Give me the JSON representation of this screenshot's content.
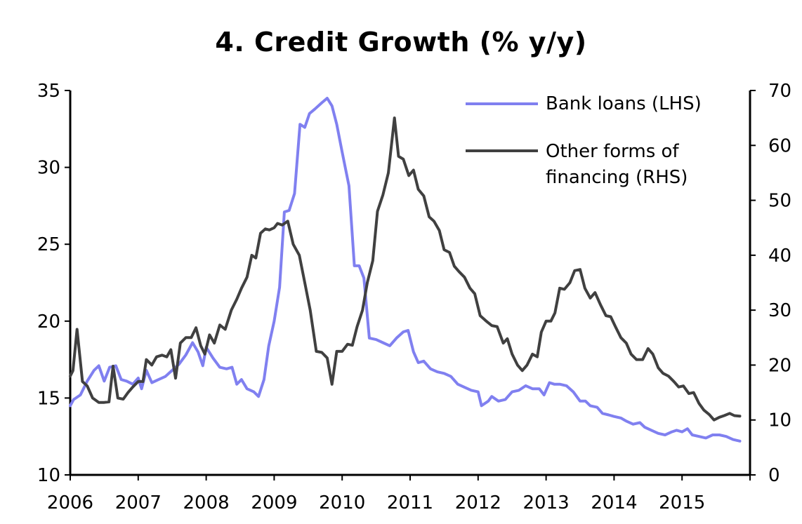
{
  "chart_data": {
    "type": "line",
    "title": "4. Credit Growth (% y/y)",
    "x_ticks": [
      "2006",
      "2007",
      "2008",
      "2009",
      "2010",
      "2011",
      "2012",
      "2013",
      "2014",
      "2015"
    ],
    "x_range": [
      2006.0,
      2016.0
    ],
    "y_left": {
      "ticks": [
        "10",
        "15",
        "20",
        "25",
        "30",
        "35"
      ],
      "range": [
        10,
        35
      ]
    },
    "y_right": {
      "ticks": [
        "0",
        "10",
        "20",
        "30",
        "40",
        "50",
        "60",
        "70"
      ],
      "range": [
        0,
        70
      ]
    },
    "grid": false,
    "legend_placement": "top-right",
    "series": [
      {
        "name": "Bank loans (LHS)",
        "axis": "left",
        "color": "#8080f0",
        "points": [
          [
            2006.0,
            14.5
          ],
          [
            2006.05,
            14.9
          ],
          [
            2006.15,
            15.2
          ],
          [
            2006.25,
            16.1
          ],
          [
            2006.35,
            16.8
          ],
          [
            2006.42,
            17.1
          ],
          [
            2006.5,
            16.1
          ],
          [
            2006.58,
            17.0
          ],
          [
            2006.67,
            17.1
          ],
          [
            2006.75,
            16.2
          ],
          [
            2006.83,
            16.1
          ],
          [
            2006.92,
            15.9
          ],
          [
            2007.0,
            16.3
          ],
          [
            2007.05,
            15.6
          ],
          [
            2007.12,
            16.8
          ],
          [
            2007.2,
            16.0
          ],
          [
            2007.3,
            16.2
          ],
          [
            2007.4,
            16.4
          ],
          [
            2007.5,
            16.8
          ],
          [
            2007.6,
            17.2
          ],
          [
            2007.7,
            17.8
          ],
          [
            2007.8,
            18.6
          ],
          [
            2007.88,
            18.0
          ],
          [
            2007.95,
            17.1
          ],
          [
            2008.0,
            18.3
          ],
          [
            2008.1,
            17.6
          ],
          [
            2008.2,
            17.0
          ],
          [
            2008.3,
            16.9
          ],
          [
            2008.38,
            17.0
          ],
          [
            2008.45,
            15.9
          ],
          [
            2008.52,
            16.2
          ],
          [
            2008.6,
            15.6
          ],
          [
            2008.7,
            15.4
          ],
          [
            2008.77,
            15.1
          ],
          [
            2008.85,
            16.2
          ],
          [
            2008.92,
            18.4
          ],
          [
            2009.0,
            20.0
          ],
          [
            2009.08,
            22.2
          ],
          [
            2009.15,
            27.1
          ],
          [
            2009.22,
            27.2
          ],
          [
            2009.3,
            28.3
          ],
          [
            2009.38,
            32.8
          ],
          [
            2009.45,
            32.6
          ],
          [
            2009.52,
            33.5
          ],
          [
            2009.6,
            33.8
          ],
          [
            2009.7,
            34.2
          ],
          [
            2009.78,
            34.5
          ],
          [
            2009.85,
            34.0
          ],
          [
            2009.92,
            32.8
          ],
          [
            2010.0,
            31.0
          ],
          [
            2010.1,
            28.8
          ],
          [
            2010.18,
            23.6
          ],
          [
            2010.25,
            23.6
          ],
          [
            2010.32,
            22.8
          ],
          [
            2010.4,
            18.9
          ],
          [
            2010.5,
            18.8
          ],
          [
            2010.6,
            18.6
          ],
          [
            2010.7,
            18.4
          ],
          [
            2010.8,
            18.9
          ],
          [
            2010.9,
            19.3
          ],
          [
            2010.97,
            19.4
          ],
          [
            2011.05,
            18.0
          ],
          [
            2011.12,
            17.3
          ],
          [
            2011.2,
            17.4
          ],
          [
            2011.3,
            16.9
          ],
          [
            2011.4,
            16.7
          ],
          [
            2011.5,
            16.6
          ],
          [
            2011.6,
            16.4
          ],
          [
            2011.7,
            15.9
          ],
          [
            2011.8,
            15.7
          ],
          [
            2011.9,
            15.5
          ],
          [
            2012.0,
            15.4
          ],
          [
            2012.05,
            14.5
          ],
          [
            2012.15,
            14.8
          ],
          [
            2012.2,
            15.1
          ],
          [
            2012.3,
            14.8
          ],
          [
            2012.4,
            14.9
          ],
          [
            2012.5,
            15.4
          ],
          [
            2012.6,
            15.5
          ],
          [
            2012.7,
            15.8
          ],
          [
            2012.8,
            15.6
          ],
          [
            2012.9,
            15.6
          ],
          [
            2012.97,
            15.2
          ],
          [
            2013.05,
            16.0
          ],
          [
            2013.12,
            15.9
          ],
          [
            2013.2,
            15.9
          ],
          [
            2013.3,
            15.8
          ],
          [
            2013.4,
            15.4
          ],
          [
            2013.5,
            14.8
          ],
          [
            2013.58,
            14.8
          ],
          [
            2013.65,
            14.5
          ],
          [
            2013.75,
            14.4
          ],
          [
            2013.83,
            14.0
          ],
          [
            2013.92,
            13.9
          ],
          [
            2014.0,
            13.8
          ],
          [
            2014.1,
            13.7
          ],
          [
            2014.18,
            13.5
          ],
          [
            2014.28,
            13.3
          ],
          [
            2014.38,
            13.4
          ],
          [
            2014.45,
            13.1
          ],
          [
            2014.55,
            12.9
          ],
          [
            2014.65,
            12.7
          ],
          [
            2014.75,
            12.6
          ],
          [
            2014.85,
            12.8
          ],
          [
            2014.92,
            12.9
          ],
          [
            2015.0,
            12.8
          ],
          [
            2015.08,
            13.0
          ],
          [
            2015.15,
            12.6
          ],
          [
            2015.25,
            12.5
          ],
          [
            2015.35,
            12.4
          ],
          [
            2015.45,
            12.6
          ],
          [
            2015.55,
            12.6
          ],
          [
            2015.65,
            12.5
          ],
          [
            2015.75,
            12.3
          ],
          [
            2015.85,
            12.2
          ]
        ]
      },
      {
        "name": "Other forms of financing (RHS)",
        "axis": "right",
        "color": "#404040",
        "points": [
          [
            2006.0,
            18.0
          ],
          [
            2006.04,
            19.0
          ],
          [
            2006.1,
            26.5
          ],
          [
            2006.18,
            17.0
          ],
          [
            2006.25,
            16.2
          ],
          [
            2006.33,
            14.0
          ],
          [
            2006.42,
            13.2
          ],
          [
            2006.5,
            13.2
          ],
          [
            2006.57,
            13.3
          ],
          [
            2006.63,
            19.8
          ],
          [
            2006.7,
            14.0
          ],
          [
            2006.78,
            13.8
          ],
          [
            2006.85,
            15.0
          ],
          [
            2006.92,
            16.0
          ],
          [
            2007.0,
            17.0
          ],
          [
            2007.07,
            17.0
          ],
          [
            2007.12,
            21.0
          ],
          [
            2007.2,
            20.0
          ],
          [
            2007.27,
            21.5
          ],
          [
            2007.35,
            21.8
          ],
          [
            2007.42,
            21.5
          ],
          [
            2007.48,
            22.8
          ],
          [
            2007.55,
            17.6
          ],
          [
            2007.62,
            24.0
          ],
          [
            2007.7,
            25.0
          ],
          [
            2007.78,
            25.0
          ],
          [
            2007.85,
            26.8
          ],
          [
            2007.92,
            23.5
          ],
          [
            2007.98,
            22.0
          ],
          [
            2008.05,
            25.5
          ],
          [
            2008.12,
            24.0
          ],
          [
            2008.2,
            27.3
          ],
          [
            2008.28,
            26.5
          ],
          [
            2008.37,
            30.0
          ],
          [
            2008.45,
            32.0
          ],
          [
            2008.52,
            34.0
          ],
          [
            2008.6,
            36.0
          ],
          [
            2008.67,
            40.0
          ],
          [
            2008.73,
            39.5
          ],
          [
            2008.8,
            44.0
          ],
          [
            2008.87,
            44.8
          ],
          [
            2008.93,
            44.6
          ],
          [
            2009.0,
            45.0
          ],
          [
            2009.05,
            45.8
          ],
          [
            2009.12,
            45.5
          ],
          [
            2009.2,
            46.2
          ],
          [
            2009.28,
            42.0
          ],
          [
            2009.37,
            40.0
          ],
          [
            2009.45,
            35.0
          ],
          [
            2009.53,
            30.0
          ],
          [
            2009.62,
            22.5
          ],
          [
            2009.7,
            22.3
          ],
          [
            2009.78,
            21.3
          ],
          [
            2009.85,
            16.5
          ],
          [
            2009.92,
            22.5
          ],
          [
            2010.0,
            22.5
          ],
          [
            2010.08,
            23.8
          ],
          [
            2010.15,
            23.6
          ],
          [
            2010.22,
            27.0
          ],
          [
            2010.3,
            30.0
          ],
          [
            2010.37,
            35.0
          ],
          [
            2010.45,
            39.0
          ],
          [
            2010.52,
            48.0
          ],
          [
            2010.6,
            51.0
          ],
          [
            2010.68,
            55.0
          ],
          [
            2010.77,
            65.0
          ],
          [
            2010.83,
            58.0
          ],
          [
            2010.9,
            57.5
          ],
          [
            2010.98,
            54.5
          ],
          [
            2011.05,
            55.5
          ],
          [
            2011.12,
            52.0
          ],
          [
            2011.2,
            50.8
          ],
          [
            2011.28,
            47.0
          ],
          [
            2011.35,
            46.2
          ],
          [
            2011.43,
            44.5
          ],
          [
            2011.5,
            41.0
          ],
          [
            2011.58,
            40.5
          ],
          [
            2011.65,
            38.0
          ],
          [
            2011.72,
            37.0
          ],
          [
            2011.8,
            36.0
          ],
          [
            2011.88,
            34.0
          ],
          [
            2011.95,
            33.0
          ],
          [
            2012.03,
            29.0
          ],
          [
            2012.12,
            28.0
          ],
          [
            2012.2,
            27.2
          ],
          [
            2012.28,
            27.0
          ],
          [
            2012.37,
            24.0
          ],
          [
            2012.43,
            24.8
          ],
          [
            2012.5,
            22.0
          ],
          [
            2012.58,
            20.0
          ],
          [
            2012.65,
            19.0
          ],
          [
            2012.72,
            20.0
          ],
          [
            2012.8,
            22.0
          ],
          [
            2012.87,
            21.5
          ],
          [
            2012.93,
            26.0
          ],
          [
            2013.0,
            28.0
          ],
          [
            2013.07,
            28.0
          ],
          [
            2013.13,
            29.5
          ],
          [
            2013.2,
            34.0
          ],
          [
            2013.27,
            33.8
          ],
          [
            2013.35,
            35.0
          ],
          [
            2013.42,
            37.2
          ],
          [
            2013.5,
            37.4
          ],
          [
            2013.57,
            34.0
          ],
          [
            2013.65,
            32.2
          ],
          [
            2013.72,
            33.2
          ],
          [
            2013.8,
            31.0
          ],
          [
            2013.88,
            29.0
          ],
          [
            2013.95,
            28.8
          ],
          [
            2014.02,
            27.0
          ],
          [
            2014.1,
            25.0
          ],
          [
            2014.18,
            24.0
          ],
          [
            2014.25,
            22.0
          ],
          [
            2014.33,
            21.0
          ],
          [
            2014.42,
            21.0
          ],
          [
            2014.5,
            23.0
          ],
          [
            2014.57,
            22.0
          ],
          [
            2014.65,
            19.5
          ],
          [
            2014.72,
            18.5
          ],
          [
            2014.8,
            18.0
          ],
          [
            2014.88,
            17.0
          ],
          [
            2014.95,
            16.0
          ],
          [
            2015.02,
            16.2
          ],
          [
            2015.1,
            14.8
          ],
          [
            2015.17,
            15.0
          ],
          [
            2015.25,
            13.0
          ],
          [
            2015.32,
            11.8
          ],
          [
            2015.4,
            11.0
          ],
          [
            2015.47,
            10.0
          ],
          [
            2015.55,
            10.5
          ],
          [
            2015.62,
            10.8
          ],
          [
            2015.7,
            11.2
          ],
          [
            2015.77,
            10.8
          ],
          [
            2015.85,
            10.7
          ]
        ]
      }
    ]
  }
}
